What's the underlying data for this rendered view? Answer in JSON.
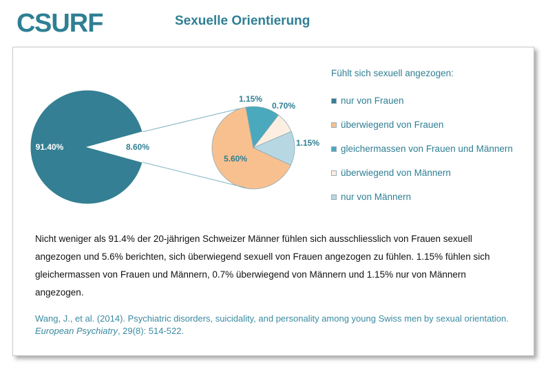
{
  "header": {
    "logo_text": "CSURF",
    "title": "Sexuelle Orientierung"
  },
  "colors": {
    "accent": "#2f7f94",
    "teal": "#347f93",
    "peach": "#f9c08f",
    "cyan": "#4aa9bd",
    "cream": "#fdeee2",
    "lightblue": "#b7d8e3"
  },
  "chart_data": {
    "type": "pie",
    "subtype": "pie-of-pie",
    "main": {
      "slices": [
        {
          "label": "91.40%",
          "value": 91.4
        },
        {
          "label": "8.60%",
          "value": 8.6
        }
      ]
    },
    "secondary": {
      "slices": [
        {
          "label": "5.60%",
          "value": 5.6,
          "legend": "überwiegend von Frauen"
        },
        {
          "label": "1.15%",
          "value": 1.15,
          "legend": "gleichermassen von Frauen und Männern"
        },
        {
          "label": "0.70%",
          "value": 0.7,
          "legend": "überwiegend von Männern"
        },
        {
          "label": "1.15%",
          "value": 1.15,
          "legend": "nur von Männern"
        }
      ]
    },
    "legend_title": "Fühlt sich sexuell angezogen:",
    "legend": [
      "nur von Frauen",
      "überwiegend von Frauen",
      "gleichermassen von Frauen und Männern",
      "überwiegend von Männern",
      "nur von Männern"
    ],
    "legend_placement": "right"
  },
  "text": {
    "description": "Nicht weniger als 91.4%  der 20-jährigen Schweizer Männer fühlen sich ausschliesslich  von Frauen sexuell angezogen und 5.6% berichten, sich überwiegend sexuell von Frauen angezogen zu fühlen.  1.15% fühlen sich gleichermassen von Frauen und Männern, 0.7% überwiegend von Männern und 1.15%  nur von Männern angezogen.",
    "citation_main": "Wang, J., et al. (2014). Psychiatric disorders, suicidality, and personality among young Swiss men by sexual orientation.",
    "citation_journal": "European Psychiatry",
    "citation_tail": ", 29(8): 514-522."
  }
}
